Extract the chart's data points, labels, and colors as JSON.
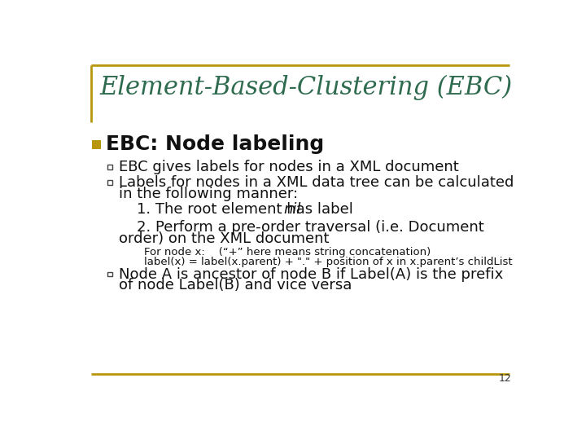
{
  "title": "Element-Based-Clustering (EBC)",
  "title_color": "#2E6B4F",
  "title_fontsize": 22,
  "bg_color": "#FFFFFF",
  "border_color": "#B8960C",
  "section_title": "EBC: Node labeling",
  "section_title_fontsize": 18,
  "section_title_color": "#111111",
  "section_bullet_color": "#B8960C",
  "page_number": "12",
  "content_color": "#111111",
  "content_fontsize": 13,
  "small_fontsize": 9.5
}
